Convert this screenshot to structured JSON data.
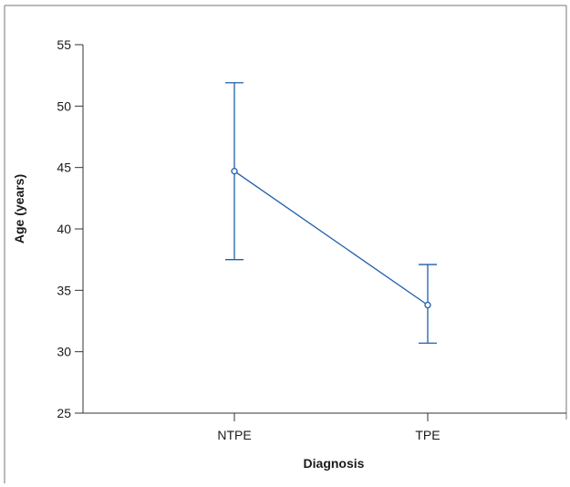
{
  "chart_data": {
    "type": "line",
    "categories": [
      "NTPE",
      "TPE"
    ],
    "series": [
      {
        "values": [
          44.7,
          33.8
        ],
        "lower": [
          37.5,
          30.7
        ],
        "upper": [
          51.9,
          37.1
        ],
        "color": "#1f5fa6"
      }
    ],
    "xlabel": "Diagnosis",
    "ylabel": "Age (years)",
    "ylim": [
      25,
      55
    ],
    "yticks": [
      "25",
      "30",
      "35",
      "40",
      "45",
      "50",
      "55"
    ],
    "grid": false
  }
}
